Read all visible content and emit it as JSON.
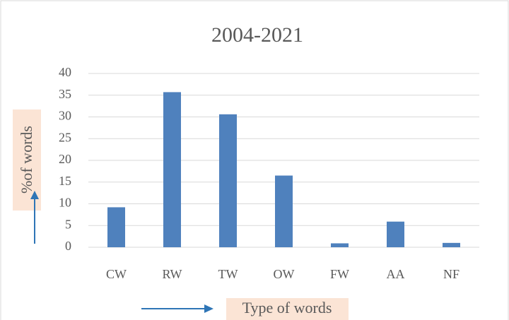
{
  "chart_data": {
    "type": "bar",
    "title": "2004-2021",
    "x_label": "Type of words",
    "y_label": "%of words",
    "categories": [
      "CW",
      "RW",
      "TW",
      "OW",
      "FW",
      "AA",
      "NF"
    ],
    "values": [
      9.2,
      35.7,
      30.6,
      16.5,
      0.9,
      5.9,
      1.0
    ],
    "color": "#4f81bd",
    "ylim": [
      0,
      40
    ],
    "yticks": [
      0,
      5,
      10,
      15,
      20,
      25,
      30,
      35,
      40
    ],
    "grid": true
  }
}
